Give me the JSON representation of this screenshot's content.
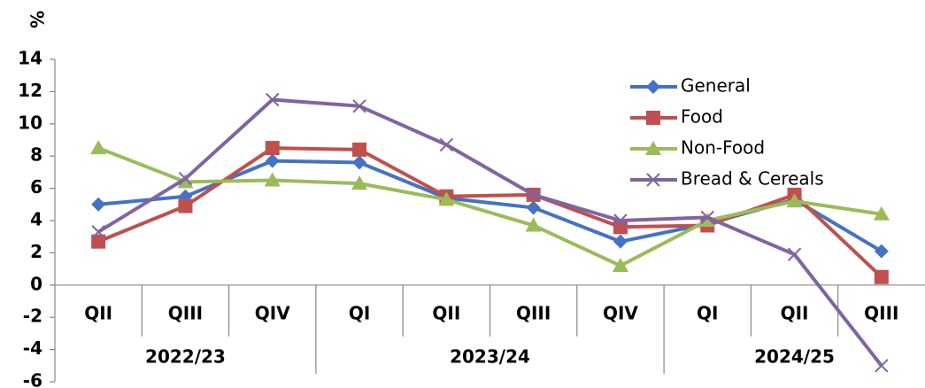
{
  "chart_data": {
    "type": "line",
    "y_label": "%",
    "categories": [
      "QII",
      "QIII",
      "QIV",
      "QI",
      "QII",
      "QIII",
      "QIV",
      "QI",
      "QII",
      "QIII"
    ],
    "category_groups": [
      {
        "label": "2022/23",
        "count": 3
      },
      {
        "label": "2023/24",
        "count": 4
      },
      {
        "label": "2024/25",
        "count": 3
      }
    ],
    "series": [
      {
        "name": "General",
        "color": "#4472c4",
        "marker": "diamond",
        "values": [
          5.0,
          5.5,
          7.7,
          7.6,
          5.4,
          4.8,
          2.7,
          3.8,
          5.3,
          2.1
        ]
      },
      {
        "name": "Food",
        "color": "#c0504d",
        "marker": "square",
        "values": [
          2.7,
          4.9,
          8.5,
          8.4,
          5.5,
          5.6,
          3.6,
          3.7,
          5.6,
          0.5
        ]
      },
      {
        "name": "Non-Food",
        "color": "#9bbb59",
        "marker": "triangle",
        "values": [
          8.5,
          6.4,
          6.5,
          6.3,
          5.3,
          3.7,
          1.2,
          4.0,
          5.2,
          4.4
        ]
      },
      {
        "name": "Bread & Cereals",
        "color": "#8064a2",
        "marker": "x",
        "values": [
          3.3,
          6.6,
          11.5,
          11.1,
          8.7,
          5.6,
          4.0,
          4.2,
          1.9,
          -5.0
        ]
      }
    ],
    "ylim": [
      -6,
      14
    ],
    "yticks": [
      -6,
      -4,
      -2,
      0,
      2,
      4,
      6,
      8,
      10,
      12,
      14
    ],
    "grid": false,
    "legend": "upper right"
  }
}
